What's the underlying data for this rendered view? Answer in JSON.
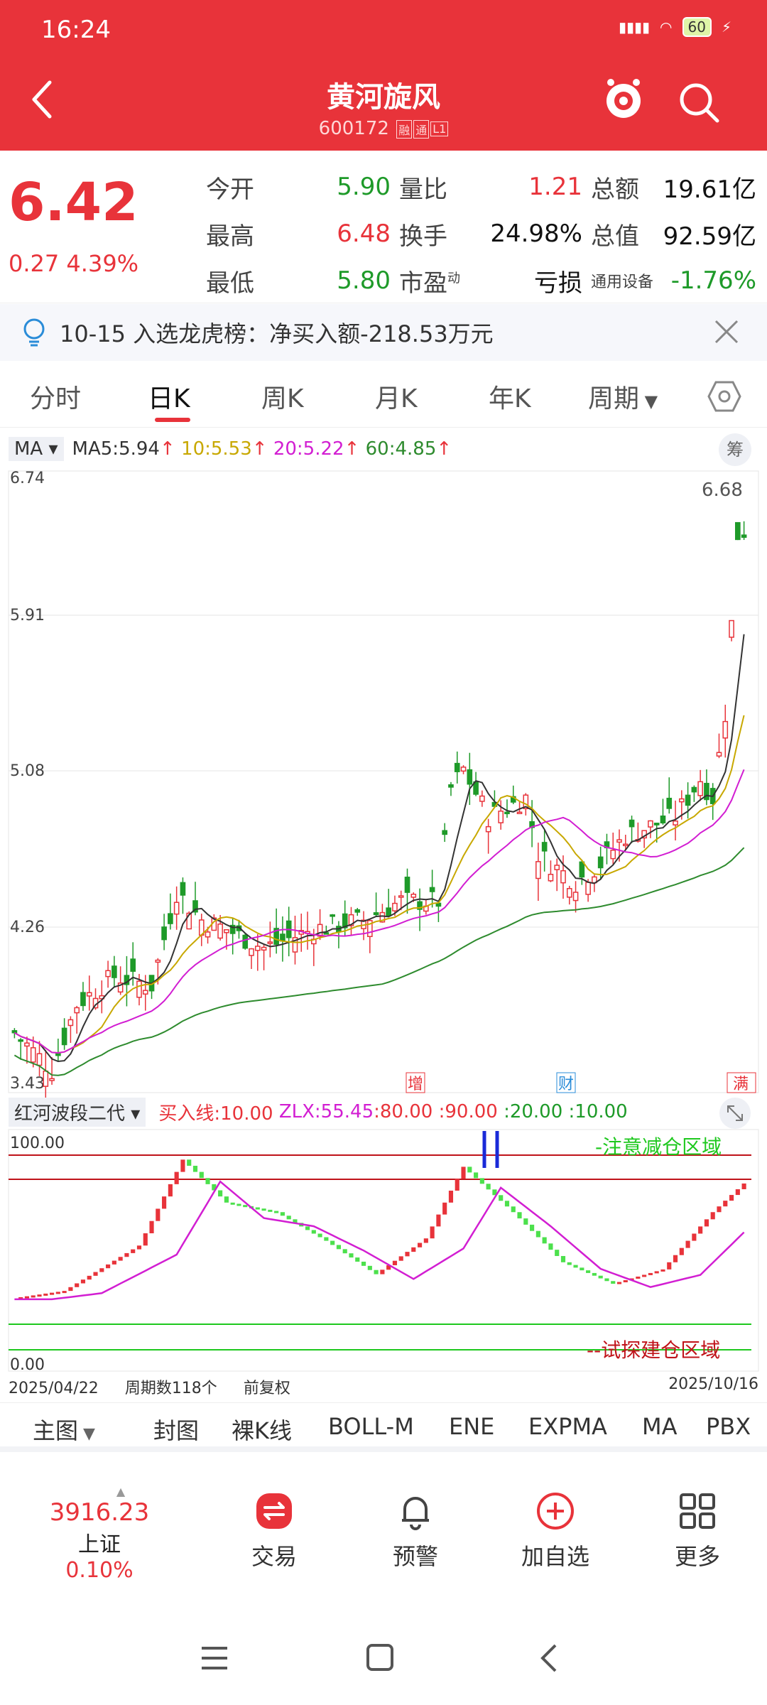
{
  "status": {
    "time": "16:24",
    "battery": "60"
  },
  "header": {
    "title": "黄河旋风",
    "code": "600172",
    "tag1": "融",
    "tag2": "通",
    "tag3": "L1"
  },
  "quote": {
    "price": "6.42",
    "change": "0.27 4.39%",
    "rows": [
      {
        "l1": "今开",
        "v1": "5.90",
        "l2": "量比",
        "v2": "1.21",
        "l3": "总额",
        "v3": "19.61亿"
      },
      {
        "l1": "最高",
        "v1": "6.48",
        "l2": "换手",
        "v2": "24.98%",
        "l3": "总值",
        "v3": "92.59亿"
      },
      {
        "l1": "最低",
        "v1": "5.80",
        "l2": "市盈",
        "l2sup": "动",
        "v2": "亏损",
        "l3tag": "通用设备",
        "v3": "-1.76%"
      }
    ]
  },
  "notice": {
    "text": "10-15 入选龙虎榜：净买入额-218.53万元"
  },
  "tabs": [
    "分时",
    "日K",
    "周K",
    "月K",
    "年K",
    "周期"
  ],
  "ma": {
    "select": "MA",
    "ma5": "MA5:5.94",
    "ma10": "10:5.53",
    "ma20": "20:5.22",
    "ma60": "60:4.85",
    "fq": "筹",
    "colors": {
      "ma5": "#333333",
      "ma10": "#c8a800",
      "ma20": "#d21ed2",
      "ma60": "#2e8b2e"
    }
  },
  "chart_data": {
    "type": "candlestick",
    "y_axis_ticks": [
      "6.74",
      "5.91",
      "5.08",
      "4.26",
      "3.43"
    ],
    "ylim": [
      3.43,
      6.74
    ],
    "max_label": "6.68",
    "markers": [
      "增",
      "财",
      "满"
    ],
    "start_date": "2025/04/22",
    "end_date": "2025/10/16",
    "period_count": "周期数118个",
    "adjust": "前复权"
  },
  "indicator": {
    "name": "红河波段二代",
    "buy_line": "买入线:10.00",
    "zlx": "ZLX:55.45",
    "l80": ":80.00",
    "l90": ":90.00",
    "l20": ":20.00",
    "l10": ":10.00",
    "top_label": "100.00",
    "bottom_label": "0.00",
    "warn_text": "-注意减仓区域",
    "build_text": "--试探建仓区域"
  },
  "chips": [
    "主图",
    "封图",
    "裸K线",
    "BOLL-M",
    "ENE",
    "EXPMA",
    "MA",
    "PBX"
  ],
  "nav": {
    "index_value": "3916.23",
    "index_name": "上证",
    "index_change": "0.10%",
    "trade": "交易",
    "alert": "预警",
    "add": "加自选",
    "more": "更多"
  }
}
